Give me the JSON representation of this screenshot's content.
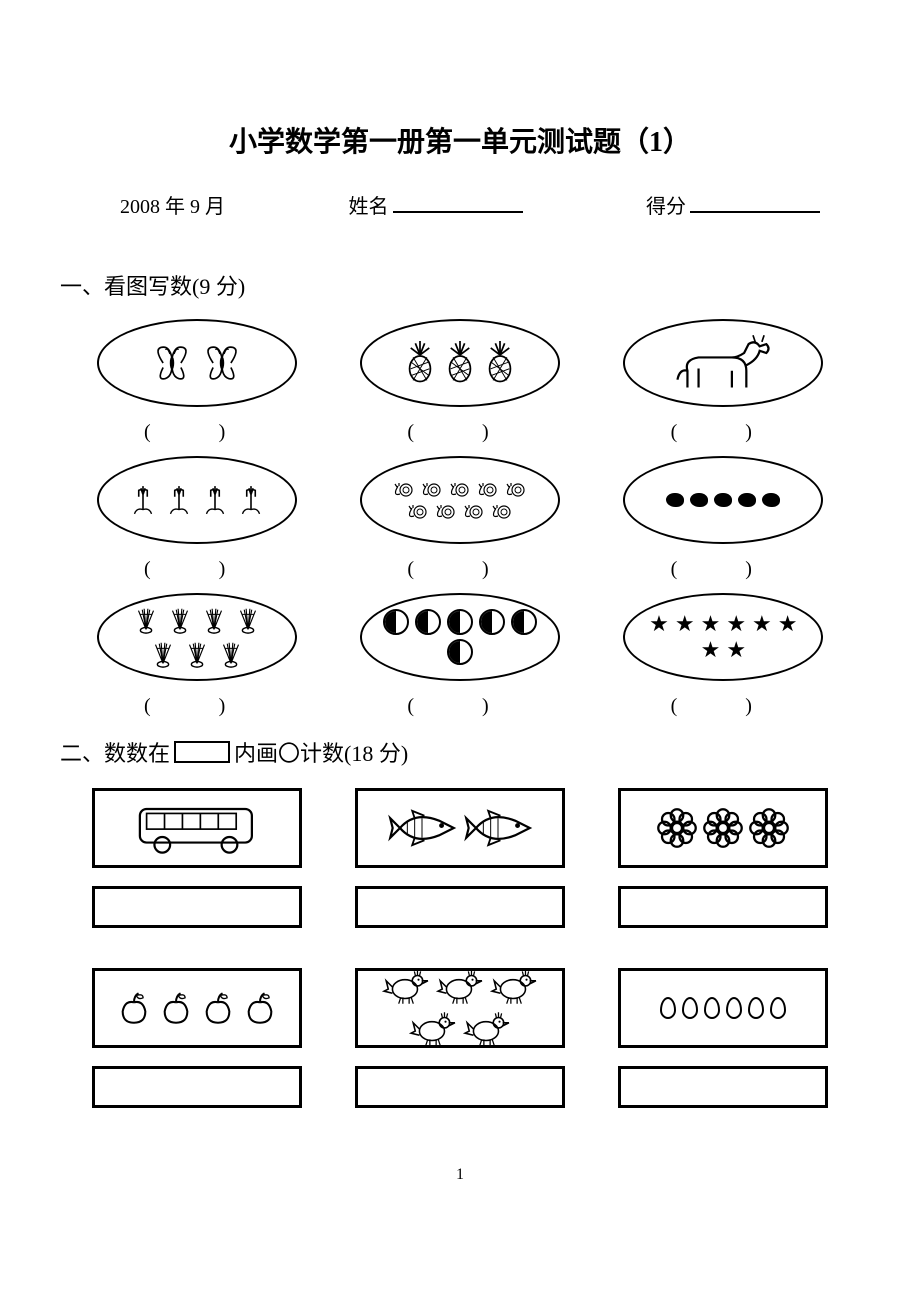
{
  "title": "小学数学第一册第一单元测试题（1）",
  "date": "2008 年 9 月",
  "name_label": "姓名",
  "score_label": "得分",
  "section1": {
    "heading": "一、看图写数(9 分)",
    "items": [
      {
        "icon": "butterfly",
        "count": 2
      },
      {
        "icon": "pineapple",
        "count": 3
      },
      {
        "icon": "donkey",
        "count": 1
      },
      {
        "icon": "tulip",
        "count": 4
      },
      {
        "icon": "snail",
        "count": 9
      },
      {
        "icon": "bean",
        "count": 5
      },
      {
        "icon": "shuttlecock",
        "count": 7
      },
      {
        "icon": "ball",
        "count": 6
      },
      {
        "icon": "star",
        "count": 8
      }
    ]
  },
  "section2": {
    "heading_pre": "二、数数在",
    "heading_post": "内画〇计数(18 分)",
    "items": [
      {
        "icon": "bus",
        "count": 1
      },
      {
        "icon": "fish",
        "count": 2
      },
      {
        "icon": "flower",
        "count": 3
      },
      {
        "icon": "apple",
        "count": 4
      },
      {
        "icon": "chicken",
        "count": 5
      },
      {
        "icon": "egg",
        "count": 6
      }
    ]
  },
  "page_number": "1",
  "colors": {
    "fg": "#000000",
    "bg": "#ffffff"
  }
}
